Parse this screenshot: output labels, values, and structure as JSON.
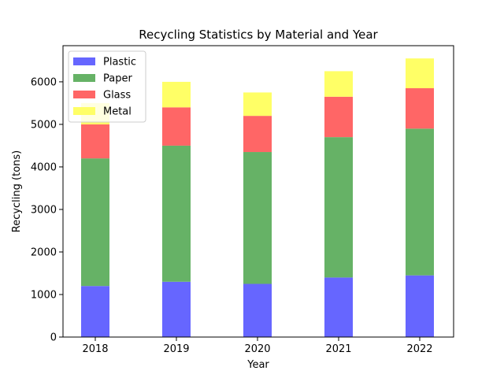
{
  "chart_data": {
    "type": "bar",
    "stacked": true,
    "title": "Recycling Statistics by Material and Year",
    "xlabel": "Year",
    "ylabel": "Recycling (tons)",
    "categories": [
      "2018",
      "2019",
      "2020",
      "2021",
      "2022"
    ],
    "ylim": [
      0,
      6850
    ],
    "yticks": [
      0,
      1000,
      2000,
      3000,
      4000,
      5000,
      6000
    ],
    "legend_position": "top-left",
    "series": [
      {
        "name": "Plastic",
        "color": "#6666ff",
        "values": [
          1200,
          1300,
          1250,
          1400,
          1450
        ]
      },
      {
        "name": "Paper",
        "color": "#66b266",
        "values": [
          3000,
          3200,
          3100,
          3300,
          3450
        ]
      },
      {
        "name": "Glass",
        "color": "#ff6666",
        "values": [
          800,
          900,
          850,
          950,
          950
        ]
      },
      {
        "name": "Metal",
        "color": "#ffff66",
        "values": [
          500,
          600,
          550,
          600,
          700
        ]
      }
    ]
  }
}
